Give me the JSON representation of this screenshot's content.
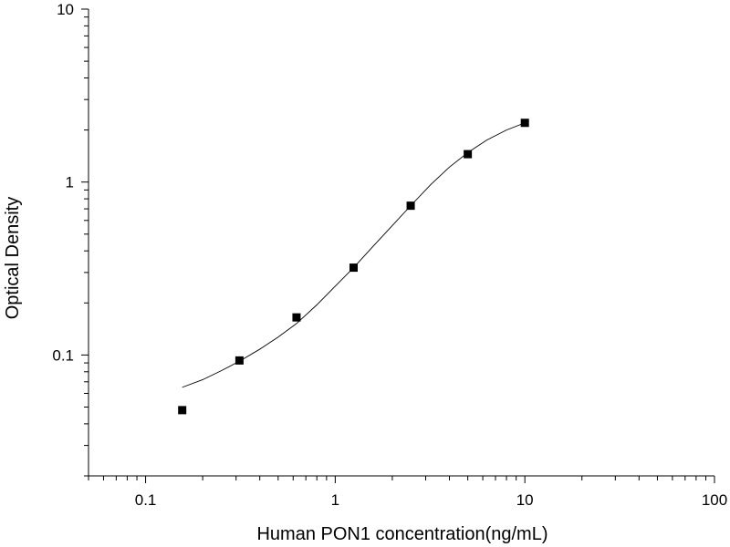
{
  "chart_data": {
    "type": "scatter",
    "xlabel": "Human PON1 concentration(ng/mL)",
    "ylabel": "Optical Density",
    "xscale": "log",
    "yscale": "log",
    "xlim": [
      0.05,
      100
    ],
    "ylim": [
      0.02,
      10
    ],
    "x_ticks": [
      0.1,
      1,
      10,
      100
    ],
    "x_tick_labels": [
      "0.1",
      "1",
      "10",
      "100"
    ],
    "y_ticks": [
      0.1,
      1,
      10
    ],
    "y_tick_labels": [
      "0.1",
      "1",
      "10"
    ],
    "grid": false,
    "marker_color": "#000000",
    "curve_color": "#000000",
    "points": [
      {
        "x": 0.156,
        "y": 0.048
      },
      {
        "x": 0.3125,
        "y": 0.093
      },
      {
        "x": 0.625,
        "y": 0.165
      },
      {
        "x": 1.25,
        "y": 0.32
      },
      {
        "x": 2.5,
        "y": 0.73
      },
      {
        "x": 5,
        "y": 1.45
      },
      {
        "x": 10,
        "y": 2.2
      }
    ],
    "fit_curve": [
      {
        "x": 0.156,
        "y": 0.065
      },
      {
        "x": 0.2,
        "y": 0.072
      },
      {
        "x": 0.25,
        "y": 0.081
      },
      {
        "x": 0.3125,
        "y": 0.092
      },
      {
        "x": 0.4,
        "y": 0.108
      },
      {
        "x": 0.5,
        "y": 0.127
      },
      {
        "x": 0.625,
        "y": 0.152
      },
      {
        "x": 0.8,
        "y": 0.195
      },
      {
        "x": 1.0,
        "y": 0.25
      },
      {
        "x": 1.25,
        "y": 0.32
      },
      {
        "x": 1.6,
        "y": 0.43
      },
      {
        "x": 2.0,
        "y": 0.56
      },
      {
        "x": 2.5,
        "y": 0.73
      },
      {
        "x": 3.2,
        "y": 0.97
      },
      {
        "x": 4.0,
        "y": 1.22
      },
      {
        "x": 5.0,
        "y": 1.48
      },
      {
        "x": 6.3,
        "y": 1.75
      },
      {
        "x": 8.0,
        "y": 2.0
      },
      {
        "x": 10.0,
        "y": 2.2
      }
    ]
  }
}
